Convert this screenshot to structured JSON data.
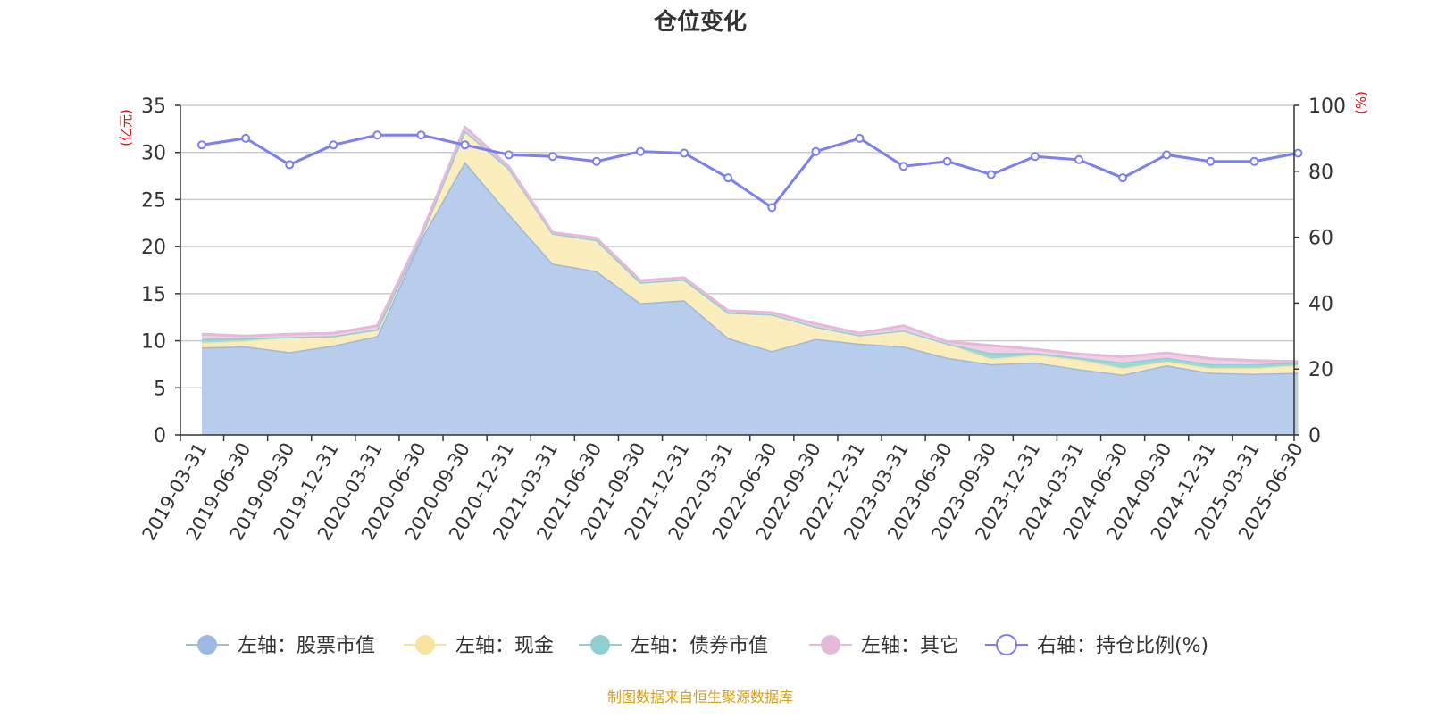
{
  "chart_data": {
    "type": "area",
    "title": "仓位变化",
    "left_axis_unit": "(亿元)",
    "right_axis_unit": "(%)",
    "left_ylim": [
      0,
      35
    ],
    "left_ticks": [
      0,
      5,
      10,
      15,
      20,
      25,
      30,
      35
    ],
    "right_ylim": [
      0,
      100
    ],
    "right_ticks": [
      0,
      20,
      40,
      60,
      80,
      100
    ],
    "grid": true,
    "legend_position": "bottom",
    "categories": [
      "2019-03-31",
      "2019-06-30",
      "2019-09-30",
      "2019-12-31",
      "2020-03-31",
      "2020-06-30",
      "2020-09-30",
      "2020-12-31",
      "2021-03-31",
      "2021-06-30",
      "2021-09-30",
      "2021-12-31",
      "2022-03-31",
      "2022-06-30",
      "2022-09-30",
      "2022-12-31",
      "2023-03-31",
      "2023-06-30",
      "2023-09-30",
      "2023-12-31",
      "2024-03-31",
      "2024-06-30",
      "2024-09-30",
      "2024-12-31",
      "2025-03-31",
      "2025-06-30"
    ],
    "stacked_series": [
      {
        "name": "左轴：股票市值",
        "color": "#9db8e2",
        "fill": "#b8cdec",
        "values": [
          9.3,
          9.4,
          8.8,
          9.5,
          10.5,
          20.8,
          29.0,
          23.5,
          18.2,
          17.4,
          14.0,
          14.3,
          10.3,
          8.9,
          10.2,
          9.7,
          9.4,
          8.2,
          7.5,
          7.7,
          7.0,
          6.4,
          7.4,
          6.6,
          6.5,
          6.6
        ]
      },
      {
        "name": "左轴：现金",
        "color": "#f9e3a0",
        "fill": "#fbedbc",
        "values": [
          0.5,
          0.6,
          1.6,
          1.0,
          0.7,
          0.3,
          3.3,
          4.8,
          3.2,
          3.3,
          2.2,
          2.2,
          2.7,
          3.9,
          1.3,
          0.9,
          1.7,
          1.5,
          0.6,
          0.8,
          1.0,
          0.7,
          0.4,
          0.5,
          0.6,
          0.8
        ]
      },
      {
        "name": "左轴：债券市值",
        "color": "#8fcfcf",
        "fill": "#9fd6d6",
        "values": [
          0.4,
          0.3,
          0,
          0,
          0,
          0,
          0,
          0,
          0,
          0,
          0,
          0,
          0,
          0,
          0,
          0,
          0,
          0,
          0.6,
          0.2,
          0.2,
          0.6,
          0.4,
          0.4,
          0.4,
          0.3
        ]
      },
      {
        "name": "左轴：其它",
        "color": "#e6b8d9",
        "fill": "#eed0e4",
        "values": [
          0.5,
          0.2,
          0.3,
          0.3,
          0.4,
          0.2,
          0.4,
          0.2,
          0.1,
          0.2,
          0.2,
          0.2,
          0.2,
          0.2,
          0.3,
          0.2,
          0.5,
          0.2,
          0.8,
          0.4,
          0.4,
          0.6,
          0.5,
          0.6,
          0.4,
          0.1
        ]
      }
    ],
    "line_series": {
      "name": "右轴：持仓比例(%)",
      "color": "#7b7ff0",
      "values": [
        88,
        90,
        82,
        88,
        91,
        91,
        88,
        85,
        84.5,
        83,
        86,
        85.5,
        78,
        69,
        86,
        90,
        81.5,
        83,
        79,
        84.5,
        83.5,
        78,
        85,
        83,
        83,
        85.5
      ]
    },
    "source_note": "制图数据来自恒生聚源数据库"
  }
}
